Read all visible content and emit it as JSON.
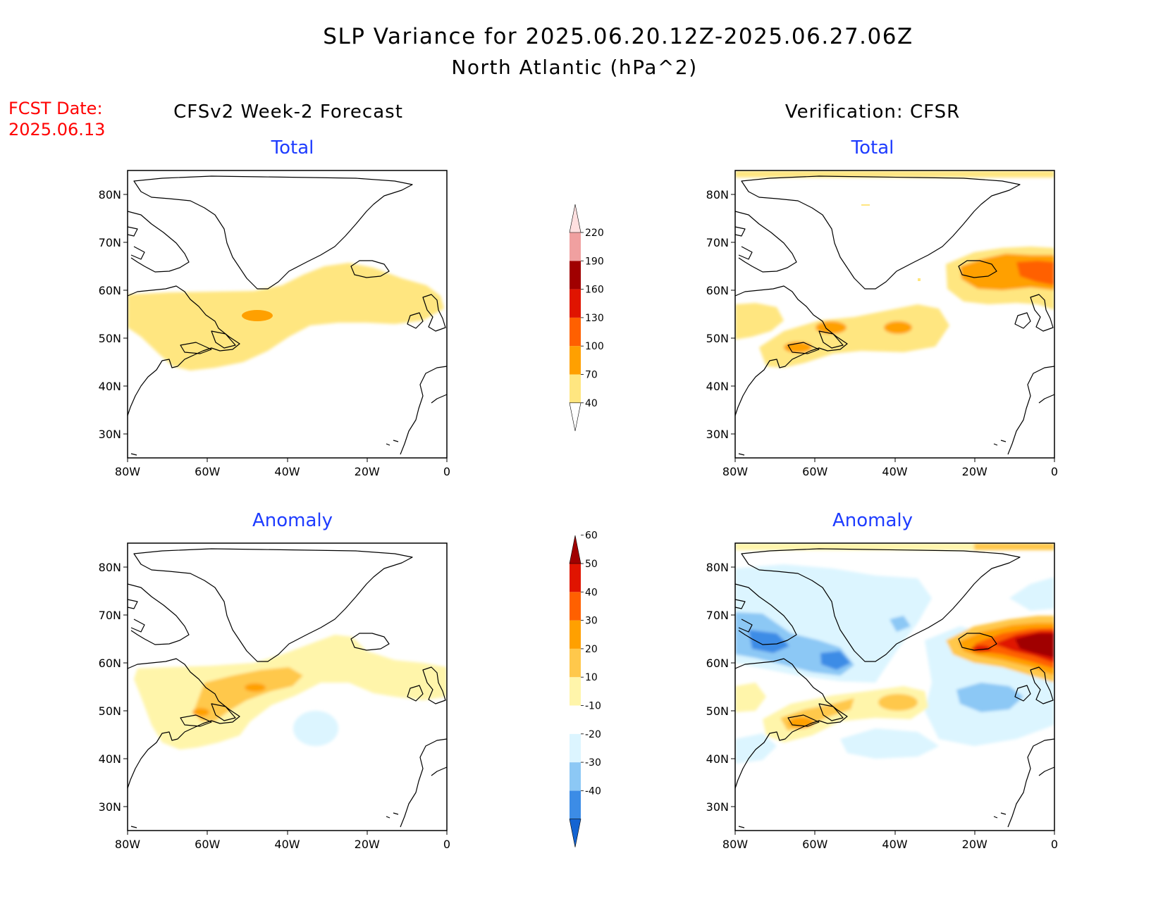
{
  "title": {
    "line1": "SLP Variance for 2025.06.20.12Z-2025.06.27.06Z",
    "line2": "North Atlantic (hPa^2)"
  },
  "fcst": {
    "label": "FCST Date:",
    "date": "2025.06.13"
  },
  "columns": {
    "left": "CFSv2 Week-2 Forecast",
    "right": "Verification: CFSR"
  },
  "panel_titles": {
    "total": "Total",
    "anomaly": "Anomaly"
  },
  "axes": {
    "lon_labels": [
      "80W",
      "60W",
      "40W",
      "20W",
      "0"
    ],
    "lat_labels": [
      "80N",
      "70N",
      "60N",
      "50N",
      "40N",
      "30N"
    ]
  },
  "colorbars": {
    "total": {
      "levels": [
        "40",
        "70",
        "100",
        "130",
        "160",
        "190",
        "220"
      ],
      "colors": [
        "#ffe680",
        "#ffa000",
        "#ff6000",
        "#e01400",
        "#a00000",
        "#f0a0a0",
        "#ffe0e0"
      ]
    },
    "anomaly": {
      "levels": [
        "-40",
        "-30",
        "-20",
        "-10",
        "10",
        "20",
        "30",
        "40",
        "50",
        "60"
      ],
      "colors": [
        "#1464d2",
        "#3c8ce6",
        "#8cc8f5",
        "#dcf5ff",
        "#ffffff",
        "#fff5aa",
        "#ffc84b",
        "#ffa000",
        "#ff6000",
        "#e01400",
        "#a00000"
      ]
    }
  }
}
